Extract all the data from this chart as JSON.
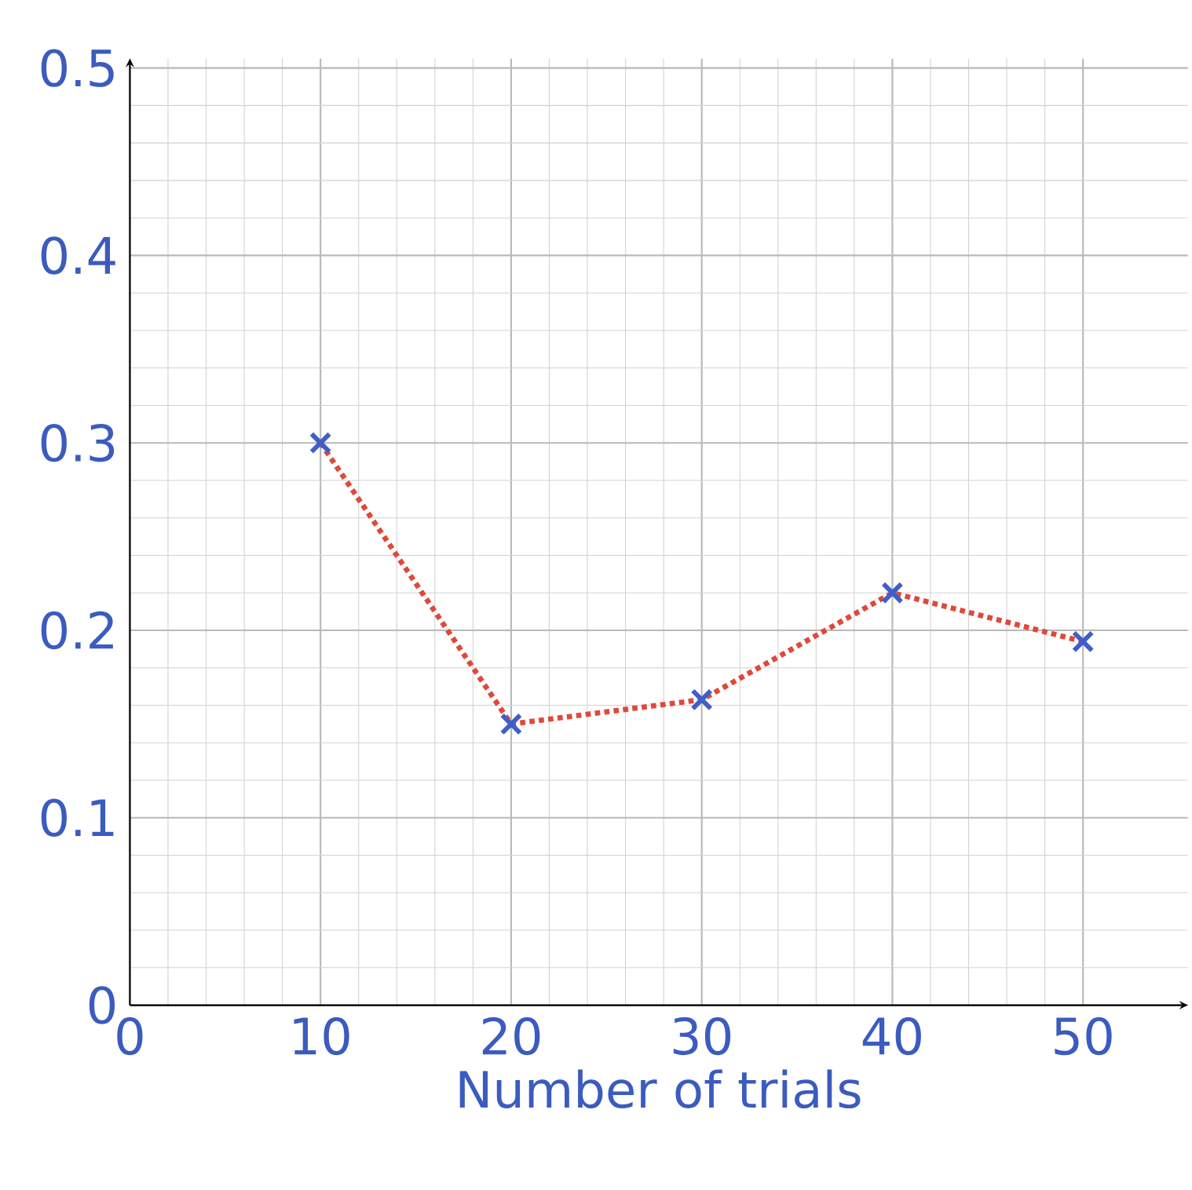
{
  "chart_data": {
    "type": "line",
    "xlabel": "Number of trials",
    "x": [
      10,
      20,
      30,
      40,
      50
    ],
    "series": [
      {
        "color": "#e0483a",
        "values": [
          0.3,
          0.15,
          0.163,
          0.22,
          0.194
        ],
        "line_style": "dotted",
        "marker": "none"
      },
      {
        "type": "scatter",
        "color": "#3f5fc8",
        "values": [
          0.3,
          0.15,
          0.163,
          0.22,
          0.194
        ],
        "marker": "cross"
      }
    ],
    "xlim": [
      0,
      55.5
    ],
    "ylim": [
      0,
      0.505
    ],
    "xticks": [
      0,
      10,
      20,
      30,
      40,
      50
    ],
    "yticks": [
      0,
      0.1,
      0.2,
      0.3,
      0.4,
      0.5
    ],
    "grid": true
  }
}
